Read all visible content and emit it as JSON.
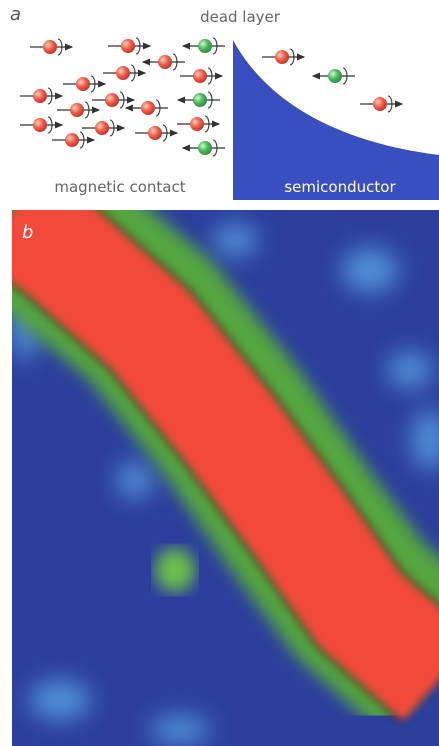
{
  "panel_a": {
    "label": "a",
    "dead_layer": "dead layer",
    "left_label": "magnetic contact",
    "right_label": "semiconductor"
  },
  "panel_b": {
    "label": "b"
  }
}
